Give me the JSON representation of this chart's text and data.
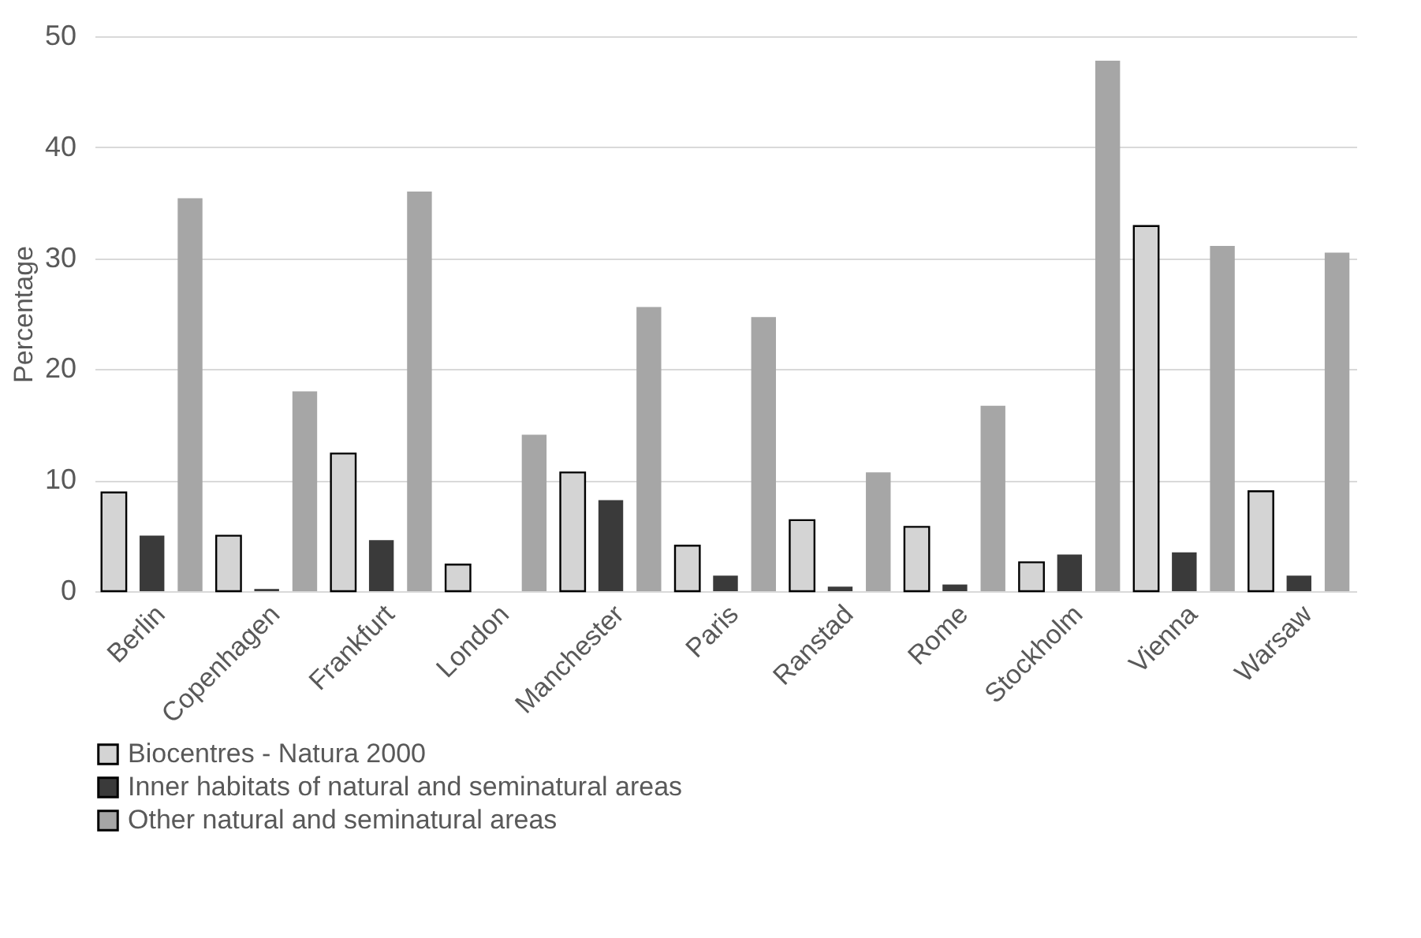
{
  "chart_data": {
    "type": "bar",
    "ylabel": "Percentage",
    "categories": [
      "Berlin",
      "Copenhagen",
      "Frankfurt",
      "London",
      "Manchester",
      "Paris",
      "Ranstad",
      "Rome",
      "Stockholm",
      "Vienna",
      "Warsaw"
    ],
    "series": [
      {
        "name": "Biocentres - Natura 2000",
        "color": "#d4d4d4",
        "values": [
          8.9,
          5.0,
          12.4,
          2.4,
          10.7,
          4.1,
          6.4,
          5.8,
          2.6,
          32.9,
          9.0
        ]
      },
      {
        "name": "Inner habitats of natural and seminatural areas",
        "color": "#3a3a3a",
        "values": [
          5.0,
          0.2,
          4.6,
          0,
          8.2,
          1.4,
          0.4,
          0.6,
          3.3,
          3.5,
          1.4
        ]
      },
      {
        "name": "Other natural and seminatural areas",
        "color": "#a6a6a6",
        "values": [
          35.4,
          18.0,
          36.0,
          14.1,
          25.6,
          24.7,
          10.7,
          16.7,
          47.8,
          31.1,
          30.5
        ]
      }
    ],
    "ylim": [
      0,
      50
    ],
    "yticks": [
      0,
      10,
      20,
      30,
      40,
      50
    ],
    "grid": "y",
    "legend": "bottom"
  }
}
